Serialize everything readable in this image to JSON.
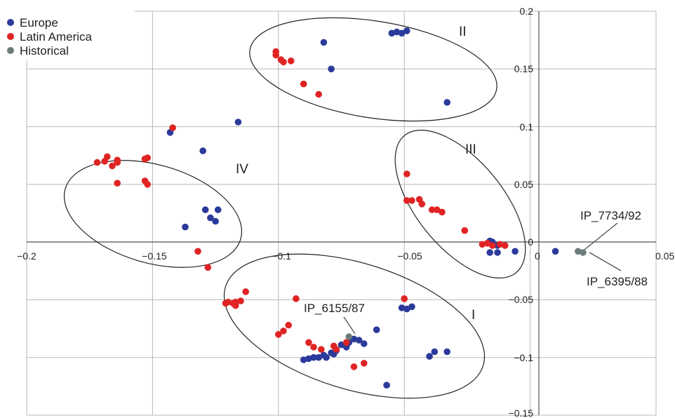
{
  "chart_data": {
    "type": "scatter",
    "xlim": [
      -0.2,
      0.05
    ],
    "ylim": [
      -0.15,
      0.2
    ],
    "grid": true,
    "legend_position": "top-left",
    "x_tick_labels": [
      "−0.2",
      "−0.15",
      "−0.1",
      "−0.05",
      "0",
      "0.05"
    ],
    "y_tick_labels": [
      "0.2",
      "0.15",
      "0.1",
      "0.05",
      "0",
      "−0.05",
      "−0.1",
      "−0.15"
    ],
    "series": [
      {
        "name": "Europe",
        "color": "#2b3a9b",
        "points": [
          [
            -0.082,
            0.173
          ],
          [
            -0.055,
            0.181
          ],
          [
            -0.053,
            0.182
          ],
          [
            -0.051,
            0.181
          ],
          [
            -0.049,
            0.183
          ],
          [
            -0.079,
            0.15
          ],
          [
            -0.033,
            0.121
          ],
          [
            -0.116,
            0.104
          ],
          [
            -0.143,
            0.095
          ],
          [
            -0.13,
            0.079
          ],
          [
            -0.129,
            0.028
          ],
          [
            -0.124,
            0.028
          ],
          [
            -0.127,
            0.021
          ],
          [
            -0.125,
            0.018
          ],
          [
            -0.137,
            0.013
          ],
          [
            -0.016,
            0.001
          ],
          [
            -0.015,
            0.0
          ],
          [
            -0.013,
            -0.003
          ],
          [
            -0.016,
            -0.009
          ],
          [
            -0.013,
            -0.009
          ],
          [
            -0.006,
            -0.008
          ],
          [
            0.01,
            -0.008
          ],
          [
            -0.051,
            -0.057
          ],
          [
            -0.049,
            -0.058
          ],
          [
            -0.047,
            -0.056
          ],
          [
            -0.061,
            -0.076
          ],
          [
            -0.07,
            -0.084
          ],
          [
            -0.068,
            -0.085
          ],
          [
            -0.072,
            -0.087
          ],
          [
            -0.075,
            -0.089
          ],
          [
            -0.066,
            -0.088
          ],
          [
            -0.073,
            -0.091
          ],
          [
            -0.077,
            -0.094
          ],
          [
            -0.079,
            -0.096
          ],
          [
            -0.082,
            -0.098
          ],
          [
            -0.084,
            -0.1
          ],
          [
            -0.086,
            -0.1
          ],
          [
            -0.088,
            -0.101
          ],
          [
            -0.09,
            -0.102
          ],
          [
            -0.081,
            -0.1
          ],
          [
            -0.078,
            -0.097
          ],
          [
            -0.038,
            -0.095
          ],
          [
            -0.033,
            -0.095
          ],
          [
            -0.04,
            -0.099
          ],
          [
            -0.057,
            -0.124
          ]
        ]
      },
      {
        "name": "Latin America",
        "color": "#e02424",
        "points": [
          [
            -0.101,
            0.165
          ],
          [
            -0.101,
            0.162
          ],
          [
            -0.099,
            0.158
          ],
          [
            -0.098,
            0.156
          ],
          [
            -0.095,
            0.157
          ],
          [
            -0.09,
            0.137
          ],
          [
            -0.084,
            0.128
          ],
          [
            -0.142,
            0.099
          ],
          [
            -0.172,
            0.069
          ],
          [
            -0.169,
            0.07
          ],
          [
            -0.168,
            0.074
          ],
          [
            -0.166,
            0.066
          ],
          [
            -0.164,
            0.069
          ],
          [
            -0.164,
            0.071
          ],
          [
            -0.153,
            0.072
          ],
          [
            -0.152,
            0.073
          ],
          [
            -0.153,
            0.053
          ],
          [
            -0.152,
            0.05
          ],
          [
            -0.164,
            0.051
          ],
          [
            -0.049,
            0.059
          ],
          [
            -0.049,
            0.036
          ],
          [
            -0.047,
            0.036
          ],
          [
            -0.044,
            0.037
          ],
          [
            -0.043,
            0.033
          ],
          [
            -0.039,
            0.028
          ],
          [
            -0.037,
            0.028
          ],
          [
            -0.035,
            0.026
          ],
          [
            -0.026,
            0.01
          ],
          [
            -0.017,
            -0.001
          ],
          [
            -0.019,
            -0.002
          ],
          [
            -0.015,
            -0.003
          ],
          [
            -0.012,
            -0.002
          ],
          [
            -0.01,
            -0.003
          ],
          [
            -0.132,
            -0.008
          ],
          [
            -0.128,
            -0.022
          ],
          [
            -0.113,
            -0.043
          ],
          [
            -0.117,
            -0.052
          ],
          [
            -0.118,
            -0.053
          ],
          [
            -0.12,
            -0.052
          ],
          [
            -0.121,
            -0.053
          ],
          [
            -0.117,
            -0.055
          ],
          [
            -0.115,
            -0.051
          ],
          [
            -0.093,
            -0.049
          ],
          [
            -0.05,
            -0.049
          ],
          [
            -0.1,
            -0.08
          ],
          [
            -0.098,
            -0.077
          ],
          [
            -0.096,
            -0.072
          ],
          [
            -0.088,
            -0.087
          ],
          [
            -0.086,
            -0.091
          ],
          [
            -0.083,
            -0.093
          ],
          [
            -0.078,
            -0.09
          ],
          [
            -0.077,
            -0.093
          ],
          [
            -0.073,
            -0.087
          ],
          [
            -0.066,
            -0.105
          ],
          [
            -0.07,
            -0.108
          ]
        ]
      },
      {
        "name": "Historical",
        "color": "#6e7b7b",
        "points": [
          [
            -0.072,
            -0.082
          ],
          [
            0.019,
            -0.008
          ],
          [
            0.021,
            -0.009
          ]
        ]
      }
    ],
    "point_labels": [
      {
        "text": "IP_6155/87",
        "x": -0.072,
        "y": -0.082
      },
      {
        "text": "IP_7734/92",
        "x": 0.019,
        "y": -0.008
      },
      {
        "text": "IP_6395/88",
        "x": 0.021,
        "y": -0.009
      }
    ],
    "cluster_labels": [
      "II",
      "III",
      "IV",
      "I"
    ]
  }
}
